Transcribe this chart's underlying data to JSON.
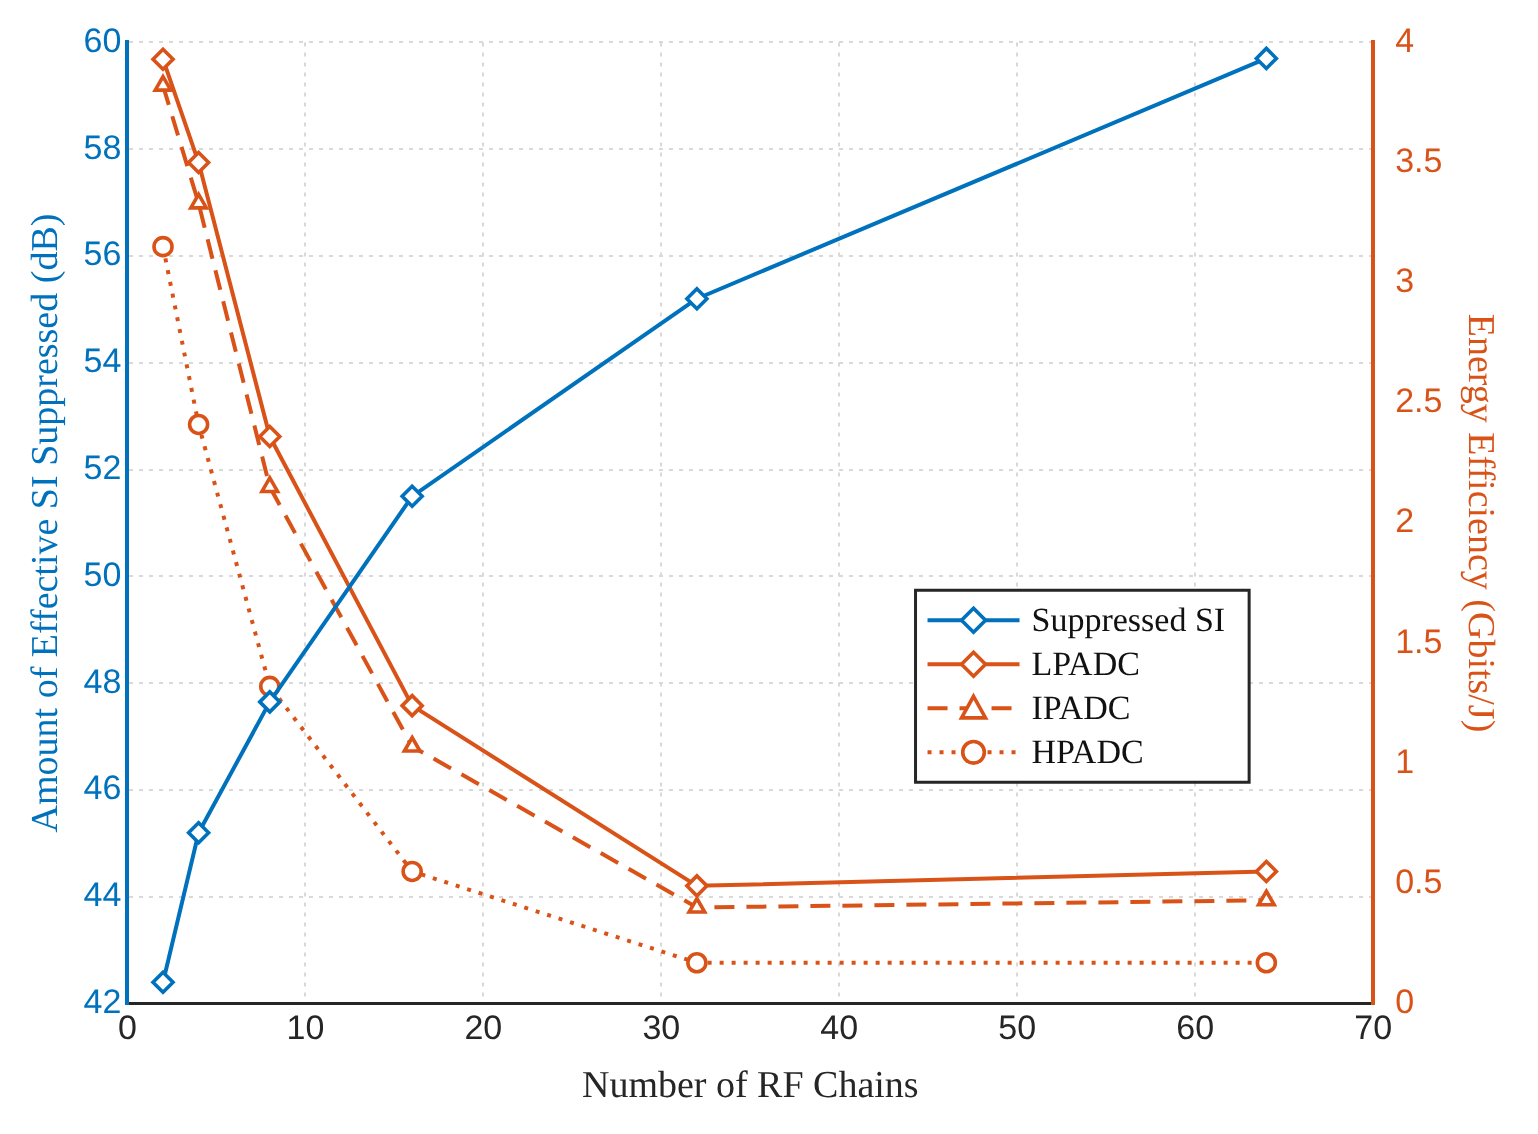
{
  "chart_data": {
    "type": "line",
    "xlabel": "Number of RF Chains",
    "ylabel": "Amount of Effective SI Suppressed (dB)",
    "y2label": "Energy Efficiency (Gbits/J)",
    "x": [
      2,
      4,
      8,
      16,
      32,
      64
    ],
    "series": [
      {
        "name": "Suppressed SI",
        "color": "#0072bd",
        "marker": "diamond",
        "line_style": "solid",
        "values": [
          42.4,
          45.2,
          47.65,
          51.5,
          55.2,
          59.7
        ]
      },
      {
        "name": "LPADC",
        "color": "#d95319",
        "marker": "diamond",
        "line_style": "solid",
        "axis": "y2",
        "values": [
          3.93,
          3.5,
          2.36,
          1.24,
          0.49,
          0.55
        ]
      },
      {
        "name": "IPADC",
        "color": "#d95319",
        "marker": "triangle",
        "line_style": "dashed",
        "axis": "y2",
        "values": [
          3.82,
          3.33,
          2.15,
          1.07,
          0.4,
          0.43
        ]
      },
      {
        "name": "HPADC",
        "color": "#d95319",
        "marker": "circle",
        "line_style": "dotted",
        "axis": "y2",
        "values": [
          3.15,
          2.41,
          1.32,
          0.55,
          0.17,
          0.17
        ]
      }
    ],
    "xlim": [
      0,
      70
    ],
    "xticks": [
      0,
      10,
      20,
      30,
      40,
      50,
      60,
      70
    ],
    "ylim": [
      42,
      60
    ],
    "yticks": [
      42,
      44,
      46,
      48,
      50,
      52,
      54,
      56,
      58,
      60
    ],
    "y2lim": [
      0,
      4
    ],
    "y2ticks": [
      0,
      0.5,
      1,
      1.5,
      2,
      2.5,
      3,
      3.5,
      4
    ],
    "grid": true,
    "legend": "right"
  }
}
